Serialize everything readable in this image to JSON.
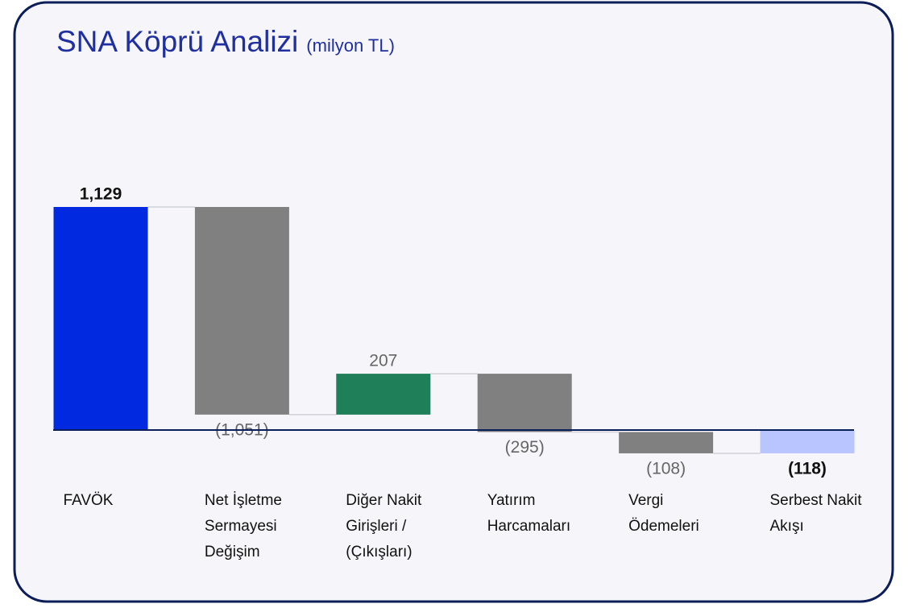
{
  "chart_data": {
    "type": "waterfall",
    "title": "SNA Köprü Analizi",
    "subtitle": "(milyon TL)",
    "categories": [
      "FAVÖK",
      "Net İşletme Sermayesi Değişim",
      "Diğer Nakit Girişleri / (Çıkışları)",
      "Yatırım Harcamaları",
      "Vergi Ödemeleri",
      "Serbest Nakit Akışı"
    ],
    "values": [
      1129,
      -1051,
      207,
      -295,
      -108,
      -118
    ],
    "value_labels": [
      "1,129",
      "(1,051)",
      "207",
      "(295)",
      "(108)",
      "(118)"
    ],
    "totals": [
      true,
      false,
      false,
      false,
      false,
      true
    ],
    "colors": [
      "#0029e0",
      "#808080",
      "#1e7f58",
      "#808080",
      "#808080",
      "#b9c5ff"
    ]
  }
}
